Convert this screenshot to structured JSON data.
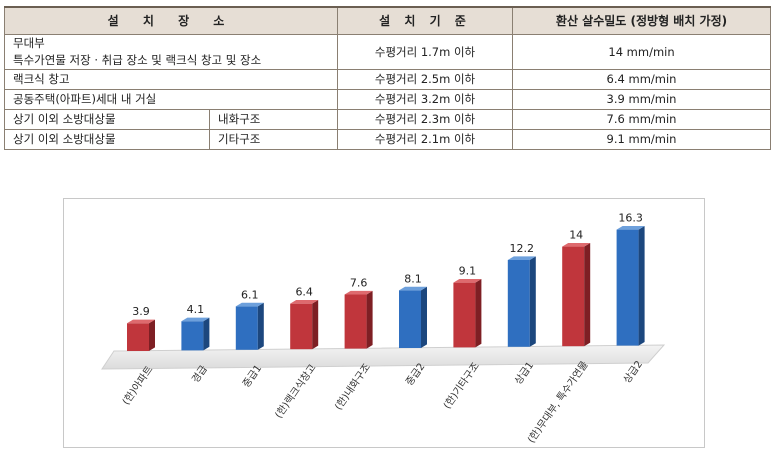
{
  "table": {
    "headers": {
      "place": "설 치 장 소",
      "standard": "설 치 기 준",
      "density": "환산 살수밀도 (정방형 배치 가정)"
    },
    "rows": [
      {
        "place_line1": "무대부",
        "place_line2": "특수가연물 저장 · 취급 장소 및 랙크식 창고 및 장소",
        "standard": "수평거리 1.7m 이하",
        "density": "14 mm/min"
      },
      {
        "place": "랙크식 창고",
        "standard": "수평거리 2.5m 이하",
        "density": "6.4 mm/min"
      },
      {
        "place": "공동주택(아파트)세대 내 거실",
        "standard": "수평거리 3.2m 이하",
        "density": "3.9 mm/min"
      },
      {
        "place": "상기 이외 소방대상물",
        "sub": "내화구조",
        "standard": "수평거리 2.3m 이하",
        "density": "7.6 mm/min"
      },
      {
        "place": "상기 이외 소방대상물",
        "sub": "기타구조",
        "standard": "수평거리 2.1m 이하",
        "density": "9.1 mm/min"
      }
    ]
  },
  "colors": {
    "red": "#c0363c",
    "blue": "#2f6fc0",
    "axis_label": "#333333"
  },
  "chart_data": {
    "type": "bar",
    "categories": [
      "(한)아파트",
      "경급",
      "중급1",
      "(한)랙크식창고",
      "(한)내화구조",
      "중급2",
      "(한)기타구조",
      "상급1",
      "(한)무대부, 특수가연물",
      "상급2"
    ],
    "values": [
      3.9,
      4.1,
      6.1,
      6.4,
      7.6,
      8.1,
      9.1,
      12.2,
      14,
      16.3
    ],
    "value_labels": [
      "3.9",
      "4.1",
      "6.1",
      "6.4",
      "7.6",
      "8.1",
      "9.1",
      "12.2",
      "14",
      "16.3"
    ],
    "bar_colors": [
      "red",
      "blue",
      "blue",
      "red",
      "red",
      "blue",
      "red",
      "blue",
      "red",
      "blue"
    ],
    "ylim": [
      0,
      16.3
    ],
    "grid": false,
    "legend": "none"
  }
}
